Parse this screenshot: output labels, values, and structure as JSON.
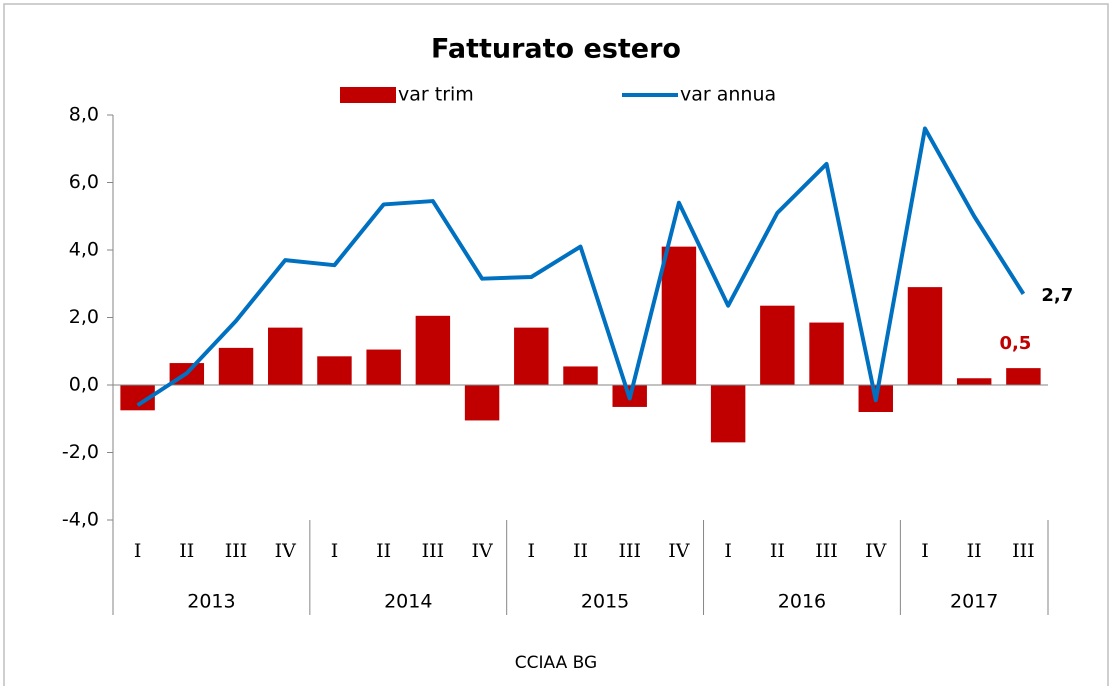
{
  "chart_data": {
    "type": "bar-line",
    "title": "Fatturato estero",
    "source": "CCIAA BG",
    "categories": [
      "I",
      "II",
      "III",
      "IV",
      "I",
      "II",
      "III",
      "IV",
      "I",
      "II",
      "III",
      "IV",
      "I",
      "II",
      "III",
      "IV",
      "I",
      "II",
      "III"
    ],
    "years": [
      "2013",
      "2013",
      "2013",
      "2013",
      "2014",
      "2014",
      "2014",
      "2014",
      "2015",
      "2015",
      "2015",
      "2015",
      "2016",
      "2016",
      "2016",
      "2016",
      "2017",
      "2017",
      "2017"
    ],
    "series": [
      {
        "name": "var trim",
        "kind": "bar",
        "color": "#c00000",
        "values": [
          -0.75,
          0.65,
          1.1,
          1.7,
          0.85,
          1.05,
          2.05,
          -1.05,
          1.7,
          0.55,
          -0.65,
          4.1,
          -1.7,
          2.35,
          1.85,
          -0.8,
          2.9,
          0.2,
          0.5
        ],
        "value_labels": {
          "18": "0,5"
        }
      },
      {
        "name": "var annua",
        "kind": "line",
        "color": "#0070c0",
        "values": [
          -0.6,
          0.35,
          1.9,
          3.7,
          3.55,
          5.35,
          5.45,
          3.15,
          3.2,
          4.1,
          -0.4,
          5.4,
          2.35,
          5.1,
          6.55,
          -0.45,
          7.6,
          5.0,
          2.7
        ],
        "value_labels": {
          "18": "2,7"
        }
      }
    ],
    "ylim": [
      -4,
      8
    ],
    "yticks": [
      {
        "value": -4,
        "label": "-4,0"
      },
      {
        "value": -2,
        "label": "-2,0"
      },
      {
        "value": 0,
        "label": "0,0"
      },
      {
        "value": 2,
        "label": "2,0"
      },
      {
        "value": 4,
        "label": "4,0"
      },
      {
        "value": 6,
        "label": "6,0"
      },
      {
        "value": 8,
        "label": "8,0"
      }
    ],
    "legend": "top",
    "grid": false
  }
}
